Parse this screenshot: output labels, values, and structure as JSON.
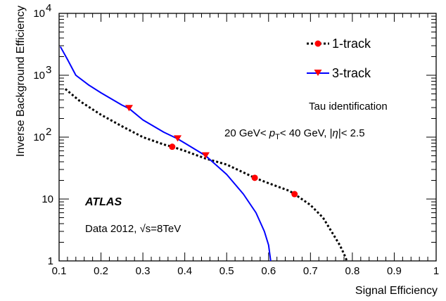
{
  "chart_data": {
    "type": "line",
    "xlabel": "Signal Efficiency",
    "ylabel": "Inverse Background Efficiency",
    "xlim": [
      0.1,
      1.0
    ],
    "ylim": [
      1,
      10000
    ],
    "yscale": "log",
    "x_ticks": [
      "0.1",
      "0.2",
      "0.3",
      "0.4",
      "0.5",
      "0.6",
      "0.7",
      "0.8",
      "0.9",
      "1"
    ],
    "y_ticks": [
      {
        "label": "1",
        "value": 1
      },
      {
        "label": "10",
        "value": 10
      }
    ],
    "y_ticks_pow": [
      {
        "base": "10",
        "exp": "2",
        "value": 100
      },
      {
        "base": "10",
        "exp": "3",
        "value": 1000
      },
      {
        "base": "10",
        "exp": "4",
        "value": 10000
      }
    ],
    "legend_position": "top-right",
    "series": [
      {
        "name": "1-track",
        "style": "dotted",
        "color": "#000000",
        "marker": "circle",
        "marker_color": "#ff0000",
        "x": [
          0.115,
          0.15,
          0.2,
          0.25,
          0.3,
          0.35,
          0.37,
          0.4,
          0.45,
          0.5,
          0.55,
          0.567,
          0.6,
          0.65,
          0.662,
          0.7,
          0.73,
          0.75,
          0.77,
          0.78,
          0.787
        ],
        "y": [
          600,
          380,
          230,
          150,
          100,
          76,
          70,
          60,
          45,
          36,
          25,
          22,
          18,
          13.5,
          12,
          8,
          5,
          3,
          1.8,
          1.3,
          1
        ],
        "markers_x": [
          0.37,
          0.567,
          0.662
        ],
        "markers_y": [
          70,
          22,
          12
        ]
      },
      {
        "name": "3-track",
        "style": "solid",
        "color": "#0000ff",
        "marker": "triangle-down",
        "marker_color": "#ff0000",
        "x": [
          0.103,
          0.12,
          0.14,
          0.17,
          0.2,
          0.25,
          0.267,
          0.3,
          0.35,
          0.383,
          0.4,
          0.45,
          0.5,
          0.54,
          0.57,
          0.59,
          0.6,
          0.605
        ],
        "y": [
          2900,
          1800,
          1000,
          700,
          520,
          330,
          290,
          190,
          120,
          94,
          80,
          50,
          25,
          12,
          6,
          3,
          1.8,
          1
        ],
        "markers_x": [
          0.267,
          0.383,
          0.45
        ],
        "markers_y": [
          290,
          94,
          50
        ]
      }
    ],
    "annotations": {
      "tau": "Tau identification",
      "cut_prefix": "20 GeV< ",
      "cut_p": "p",
      "cut_sub": "T",
      "cut_suffix": "< 40 GeV, |",
      "cut_eta": "η",
      "cut_end": "|< 2.5",
      "atlas": "ATLAS",
      "data_prefix": "Data 2012,  ",
      "data_sqrt": "√",
      "data_s": "s=8TeV"
    }
  }
}
